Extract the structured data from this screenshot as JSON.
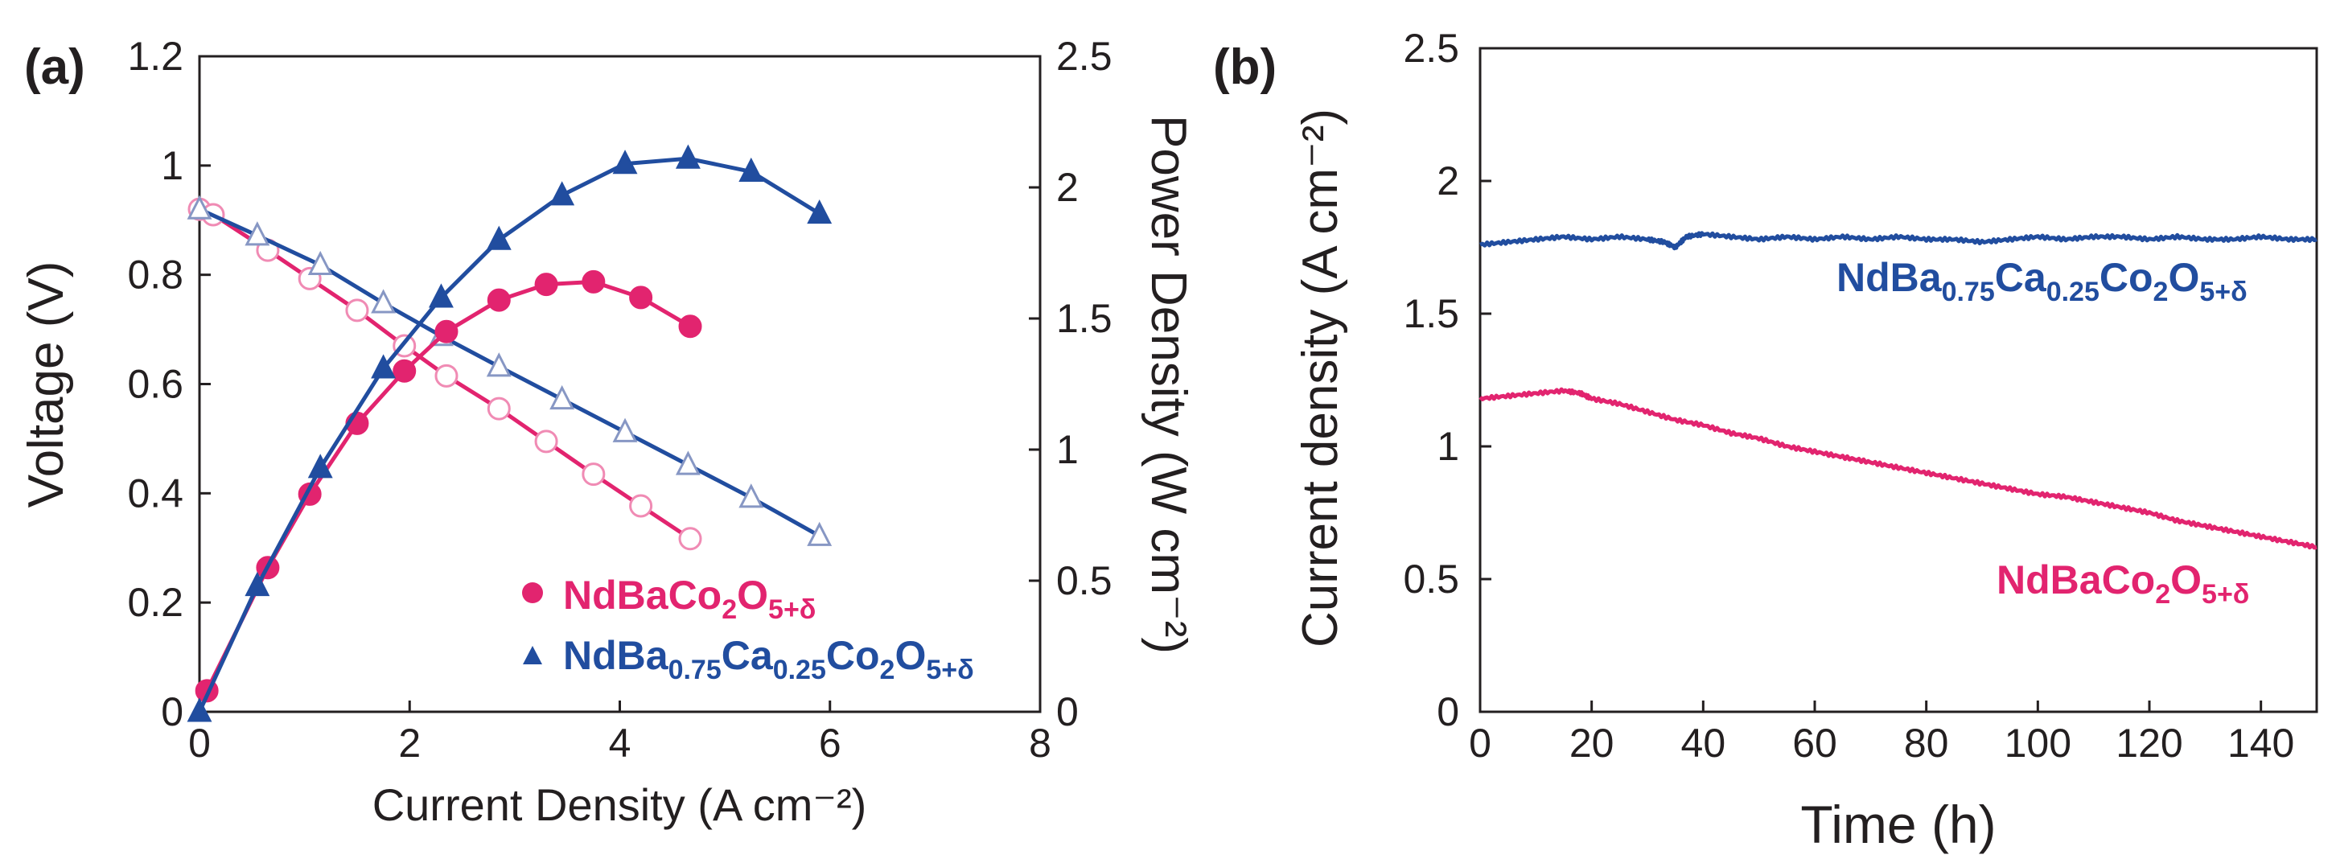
{
  "colors": {
    "pink": "#e2246f",
    "blue": "#214d9f",
    "axis": "#231f20"
  },
  "chart_data": [
    {
      "panel": "(a)",
      "type": "line",
      "xlabel": "Current Density (A cm⁻²)",
      "ylabel_left": "Voltage (V)",
      "ylabel_right": "Power Density (W cm⁻²)",
      "xlim": [
        0,
        8
      ],
      "ylim_left": [
        0,
        1.2
      ],
      "ylim_right": [
        0,
        2.5
      ],
      "x_ticks": [
        "0",
        "2",
        "4",
        "6",
        "8"
      ],
      "y_left_ticks": [
        "0",
        "0.2",
        "0.4",
        "0.6",
        "0.8",
        "1",
        "1.2"
      ],
      "y_right_ticks": [
        "0",
        "0.5",
        "1",
        "1.5",
        "2",
        "2.5"
      ],
      "legend": [
        {
          "name": "NdBaCo₂O₅₊δ",
          "base": "NdBaCo",
          "s1": "2",
          "m1": "O",
          "s2": "5+δ",
          "marker": "filled-circle",
          "color": "#e2246f"
        },
        {
          "name": "NdBa₀.₇₅Ca₀.₂₅Co₂O₅₊δ",
          "p1": "NdBa",
          "s1": "0.75",
          "p2": "Ca",
          "s2": "0.25",
          "p3": "Co",
          "s3": "2",
          "p4": "O",
          "s4": "5+δ",
          "marker": "filled-triangle",
          "color": "#214d9f"
        }
      ],
      "series": [
        {
          "name": "NdBaCo2O5+δ voltage",
          "axis": "left",
          "marker": "open-circle",
          "color": "#e2246f",
          "x": [
            0,
            0.13,
            0.65,
            1.05,
            1.5,
            1.95,
            2.35,
            2.85,
            3.3,
            3.75,
            4.2,
            4.67
          ],
          "y": [
            0.92,
            0.91,
            0.845,
            0.793,
            0.735,
            0.67,
            0.615,
            0.555,
            0.495,
            0.435,
            0.377,
            0.317
          ]
        },
        {
          "name": "NdBa0.75Ca0.25Co2O5+δ voltage",
          "axis": "left",
          "marker": "open-triangle",
          "color": "#214d9f",
          "x": [
            0,
            0.55,
            1.15,
            1.75,
            2.3,
            2.85,
            3.45,
            4.05,
            4.65,
            5.25,
            5.9
          ],
          "y": [
            0.92,
            0.872,
            0.818,
            0.748,
            0.688,
            0.632,
            0.572,
            0.512,
            0.452,
            0.392,
            0.322
          ]
        },
        {
          "name": "NdBaCo2O5+δ power",
          "axis": "right",
          "marker": "filled-circle",
          "color": "#e2246f",
          "x": [
            0.07,
            0.65,
            1.05,
            1.5,
            1.95,
            2.35,
            2.85,
            3.3,
            3.75,
            4.2,
            4.67
          ],
          "y": [
            0.08,
            0.55,
            0.83,
            1.1,
            1.3,
            1.45,
            1.57,
            1.63,
            1.64,
            1.58,
            1.47
          ]
        },
        {
          "name": "NdBa0.75Ca0.25Co2O5+δ power",
          "axis": "right",
          "marker": "filled-triangle",
          "color": "#214d9f",
          "x": [
            0,
            0.55,
            1.15,
            1.75,
            2.3,
            2.85,
            3.45,
            4.05,
            4.65,
            5.25,
            5.9
          ],
          "y": [
            0,
            0.48,
            0.93,
            1.31,
            1.58,
            1.8,
            1.97,
            2.09,
            2.11,
            2.06,
            1.9
          ]
        }
      ]
    },
    {
      "panel": "(b)",
      "type": "line",
      "xlabel": "Time (h)",
      "ylabel": "Current density (A cm⁻²)",
      "xlim": [
        0,
        150
      ],
      "ylim": [
        0,
        2.5
      ],
      "x_ticks": [
        "0",
        "20",
        "40",
        "60",
        "80",
        "100",
        "120",
        "140"
      ],
      "y_ticks": [
        "0",
        "0.5",
        "1",
        "1.5",
        "2",
        "2.5"
      ],
      "annotations": [
        {
          "name": "NdBa₀.₇₅Ca₀.₂₅Co₂O₅₊δ",
          "p1": "NdBa",
          "s1": "0.75",
          "p2": "Ca",
          "s2": "0.25",
          "p3": "Co",
          "s3": "2",
          "p4": "O",
          "s4": "5+δ",
          "color": "#214d9f"
        },
        {
          "name": "NdBaCo₂O₅₊δ",
          "base": "NdBaCo",
          "s1": "2",
          "m1": "O",
          "s2": "5+δ",
          "color": "#e2246f"
        }
      ],
      "series": [
        {
          "name": "NdBa0.75Ca0.25Co2O5+δ",
          "color": "#214d9f",
          "x": [
            0,
            5,
            10,
            15,
            20,
            25,
            30,
            33,
            35,
            37,
            40,
            45,
            50,
            55,
            60,
            65,
            70,
            75,
            80,
            85,
            90,
            95,
            100,
            105,
            110,
            115,
            120,
            125,
            130,
            135,
            140,
            145,
            150
          ],
          "y": [
            1.76,
            1.77,
            1.78,
            1.79,
            1.78,
            1.79,
            1.78,
            1.77,
            1.75,
            1.79,
            1.8,
            1.79,
            1.78,
            1.79,
            1.78,
            1.79,
            1.78,
            1.79,
            1.78,
            1.78,
            1.77,
            1.78,
            1.79,
            1.78,
            1.79,
            1.79,
            1.78,
            1.79,
            1.78,
            1.78,
            1.79,
            1.78,
            1.78
          ]
        },
        {
          "name": "NdBaCo2O5+δ",
          "color": "#e2246f",
          "x": [
            0,
            5,
            10,
            15,
            18,
            20,
            25,
            30,
            35,
            40,
            45,
            50,
            55,
            60,
            65,
            70,
            75,
            80,
            85,
            90,
            95,
            100,
            105,
            110,
            115,
            120,
            125,
            130,
            135,
            140,
            145,
            150
          ],
          "y": [
            1.18,
            1.19,
            1.2,
            1.21,
            1.2,
            1.18,
            1.16,
            1.13,
            1.1,
            1.08,
            1.05,
            1.03,
            1.0,
            0.98,
            0.96,
            0.94,
            0.92,
            0.9,
            0.88,
            0.86,
            0.84,
            0.82,
            0.81,
            0.79,
            0.77,
            0.75,
            0.72,
            0.7,
            0.68,
            0.66,
            0.64,
            0.62
          ]
        }
      ]
    }
  ]
}
